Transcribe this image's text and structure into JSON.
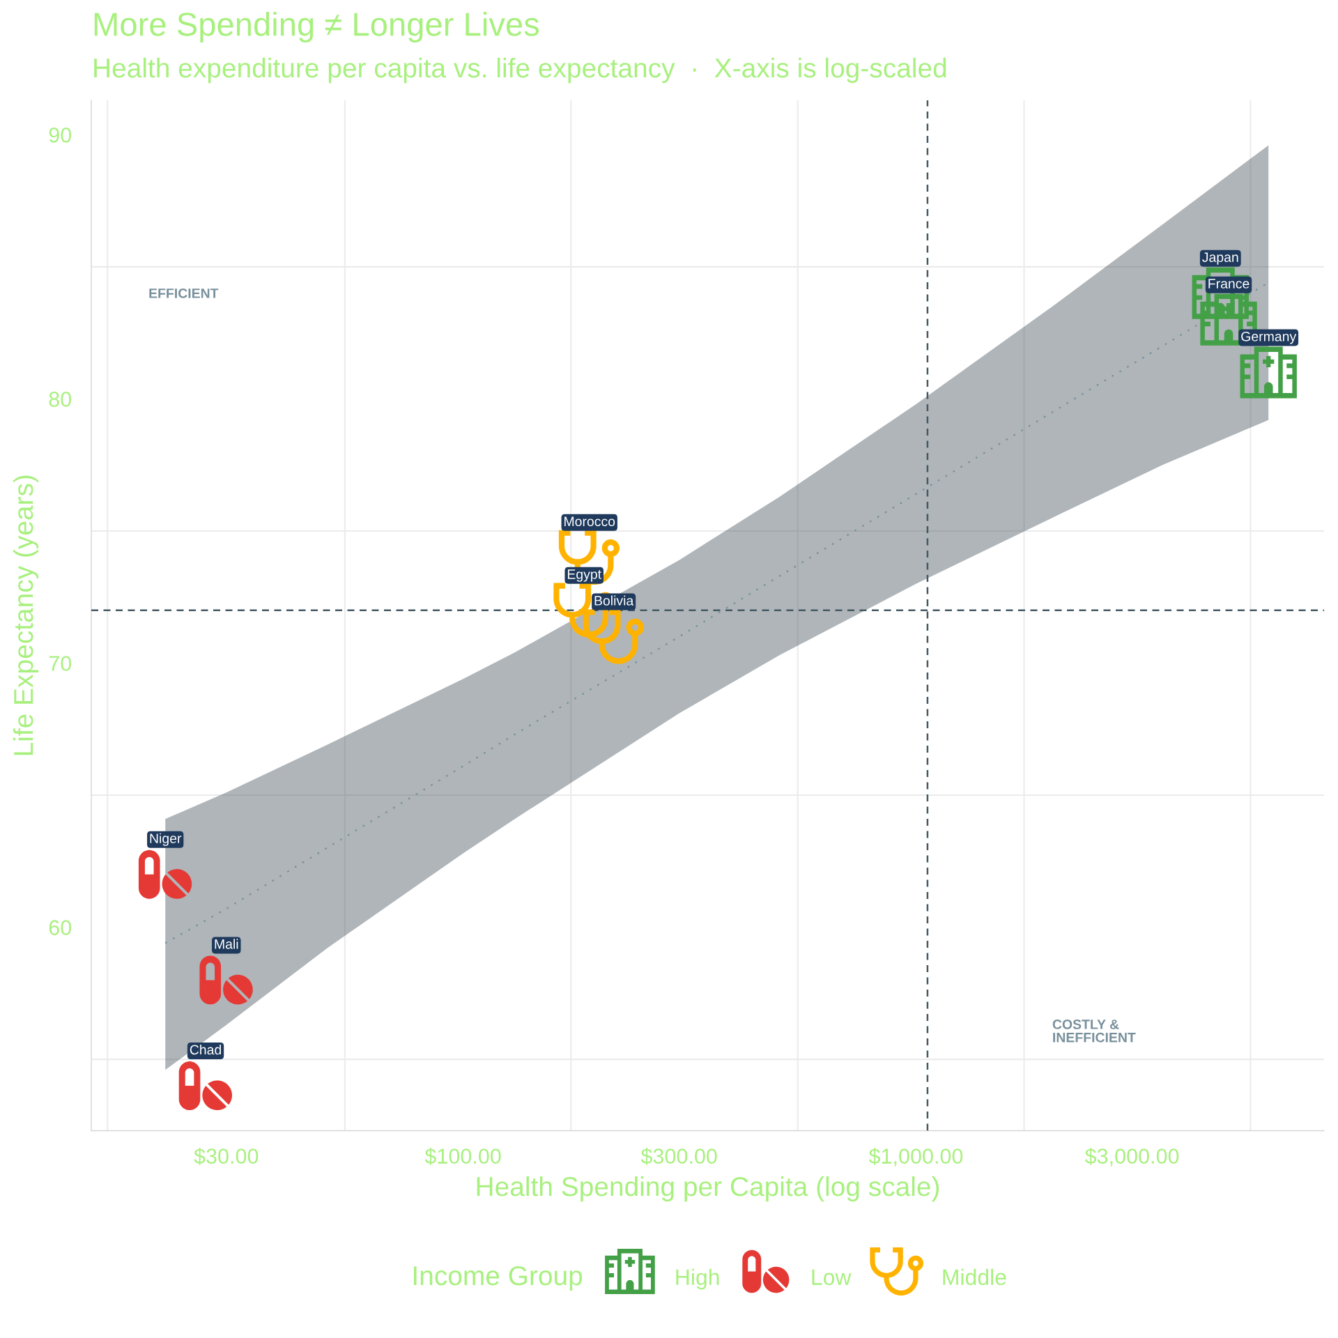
{
  "chart_data": {
    "type": "scatter",
    "title": "More Spending ≠ Longer Lives",
    "subtitle": "Health expenditure per capita vs. life expectancy  ·  X-axis is log-scaled",
    "xlabel": "Health Spending per Capita (log scale)",
    "ylabel": "Life Expectancy (years)",
    "legend_title": "Income Group",
    "log": "x",
    "xlim": [
      15.1,
      7960
    ],
    "ylim": [
      52.3,
      91.3
    ],
    "xticks": [
      {
        "value": 16.4,
        "label": null
      },
      {
        "value": 30,
        "label": "$30.00"
      },
      {
        "value": 54.8,
        "label": null
      },
      {
        "value": 100,
        "label": "$100.00"
      },
      {
        "value": 173,
        "label": null
      },
      {
        "value": 300,
        "label": "$300.00"
      },
      {
        "value": 548,
        "label": null
      },
      {
        "value": 1000,
        "label": "$1,000.00"
      },
      {
        "value": 1732,
        "label": null
      },
      {
        "value": 3000,
        "label": "$3,000.00"
      },
      {
        "value": 5477,
        "label": null
      }
    ],
    "yticks": [
      {
        "value": 55,
        "label": null
      },
      60,
      {
        "value": 65,
        "label": null
      },
      70,
      {
        "value": 75,
        "label": null
      },
      80,
      {
        "value": 85,
        "label": null
      },
      90
    ],
    "grid": true,
    "legend": "bottom",
    "series": [
      {
        "name": "High",
        "color": "#43a047",
        "x": [
          4700,
          4900,
          6000
        ],
        "values": [
          84,
          83,
          81
        ]
      },
      {
        "name": "Low",
        "color": "#e53935",
        "x": [
          22,
          30,
          27
        ],
        "values": [
          62,
          58,
          54
        ]
      },
      {
        "name": "Middle",
        "color": "#ffb300",
        "x": [
          190,
          185,
          215
        ],
        "values": [
          74,
          72,
          71
        ]
      },
      {
        "type": "line",
        "color": "#78909c",
        "line_style": "dotted",
        "x": [
          22,
          30,
          50,
          100,
          130,
          300,
          500,
          1000,
          2000,
          3500,
          6000
        ],
        "values": [
          59.4,
          60.7,
          63.0,
          66.1,
          67.3,
          71.0,
          73.3,
          76.4,
          79.5,
          82.0,
          84.4
        ],
        "lower": [
          54.6,
          56.3,
          59.2,
          62.8,
          64.1,
          68.1,
          70.3,
          73.0,
          75.5,
          77.5,
          79.2
        ],
        "upper": [
          64.1,
          65.1,
          66.9,
          69.4,
          70.4,
          73.9,
          76.3,
          79.8,
          83.5,
          86.6,
          89.6
        ]
      }
    ],
    "ref_lines": [
      {
        "axis": "x",
        "value": 1060,
        "color": "#455a64",
        "line_style": "dashed"
      },
      {
        "axis": "y",
        "value": 72,
        "color": "#455a64",
        "line_style": "dashed"
      }
    ],
    "annotations": [
      {
        "text": "Japan",
        "x": 4700,
        "y": 84
      },
      {
        "text": "France",
        "x": 4900,
        "y": 83
      },
      {
        "text": "Germany",
        "x": 6000,
        "y": 81
      },
      {
        "text": "Morocco",
        "x": 190,
        "y": 74
      },
      {
        "text": "Egypt",
        "x": 185,
        "y": 72
      },
      {
        "text": "Bolivia",
        "x": 215,
        "y": 71
      },
      {
        "text": "Niger",
        "x": 22,
        "y": 62
      },
      {
        "text": "Mali",
        "x": 30,
        "y": 58
      },
      {
        "text": "Chad",
        "x": 27,
        "y": 54
      },
      "EFFICIENT",
      "COSTLY &\nINEFFICIENT"
    ]
  }
}
